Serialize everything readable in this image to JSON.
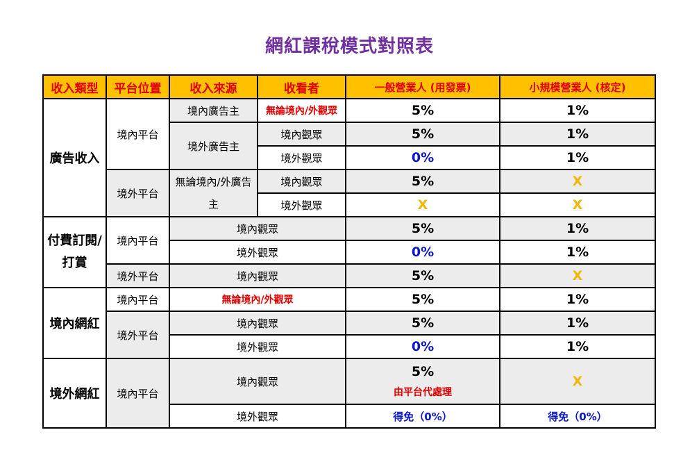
{
  "title": "網紅課稅模式對照表",
  "headers": [
    "收入類型",
    "平台位置",
    "收入來源",
    "收看者",
    "一般營業人 (用發票)",
    "小規模營業人 (核定)"
  ],
  "labels": {
    "ad_income": "廣告收入",
    "paid_sub_line1": "付費訂閱/",
    "paid_sub_line2": "打賞",
    "domestic_influencer": "境內網紅",
    "foreign_influencer": "境外網紅",
    "domestic_platform": "境內平台",
    "foreign_platform": "境外平台",
    "domestic_advertiser": "境內廣告主",
    "foreign_advertiser": "境外廣告主",
    "any_advertiser_line1": "無論境內/外廣告",
    "any_advertiser_line2": "主",
    "any_viewer": "無論境內/外觀眾",
    "domestic_viewer": "境內觀眾",
    "foreign_viewer": "境外觀眾"
  },
  "values": {
    "p5": "5%",
    "p1": "1%",
    "p0": "0%",
    "x": "X",
    "platform_handles": "由平台代處理",
    "exempt": "得免（0%）"
  },
  "colors": {
    "title": "#7030a0",
    "header_bg": "#ffc000",
    "header_text": "#e00000",
    "zero_rate": "#0d18c9",
    "not_applicable": "#f0b800",
    "row_shade": "#ececec"
  }
}
